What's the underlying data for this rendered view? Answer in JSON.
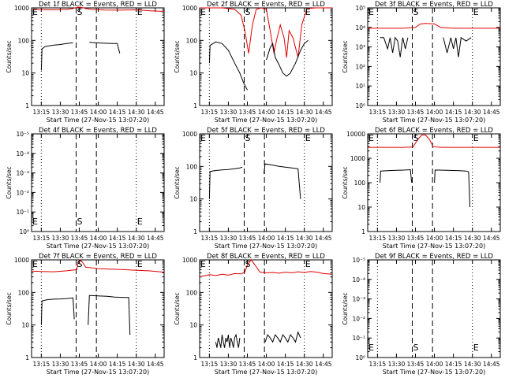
{
  "figure": {
    "xlabel": "Start Time (27-Nov-15 13:07:20)",
    "ylabel": "Counts/sec",
    "x_ticks": [
      "13:15",
      "13:30",
      "13:45",
      "14:00",
      "14:15",
      "14:30",
      "14:45"
    ],
    "x_tick_minutes": [
      0,
      15,
      30,
      45,
      60,
      75,
      90
    ],
    "xlim_minutes": [
      -7.7,
      97
    ],
    "colors": {
      "events": "#000000",
      "lld": "#e00000",
      "axes": "#000000",
      "background": "#ffffff"
    }
  },
  "chart_data": [
    {
      "type": "line",
      "title": "Det 1f BLACK = Events, RED = LLD",
      "ylim": [
        1,
        1000
      ],
      "y_ticks": [
        "1",
        "10",
        "100",
        "1000"
      ],
      "markers": {
        "E_left": "E",
        "S": "S",
        "E_right": "E"
      },
      "markers_at": "top",
      "series": [
        {
          "name": "LLD",
          "color": "#e00000",
          "x": [
            -7.7,
            0,
            10,
            20,
            25,
            26.5,
            30,
            33.5,
            35,
            40,
            50,
            60,
            75,
            85,
            97
          ],
          "y": [
            900,
            880,
            870,
            900,
            950,
            1000,
            1050,
            1000,
            950,
            900,
            860,
            850,
            870,
            820,
            780
          ]
        },
        {
          "name": "Events",
          "color": "#000000",
          "segments": [
            {
              "x": [
                0,
                0.5,
                3,
                6,
                10,
                14,
                18,
                22,
                25
              ],
              "y": [
                12,
                55,
                65,
                68,
                72,
                74,
                78,
                82,
                85
              ]
            },
            {
              "x": [
                38,
                40,
                45,
                50,
                55,
                60,
                62
              ],
              "y": [
                88,
                86,
                84,
                82,
                80,
                80,
                40
              ]
            }
          ]
        }
      ]
    },
    {
      "type": "line",
      "title": "Det 2f BLACK = Events, RED = LLD",
      "ylim": [
        1,
        1000
      ],
      "y_ticks": [
        "1",
        "10",
        "100",
        "1000"
      ],
      "markers": {
        "E_left": "E",
        "S": "S",
        "E_right": "E"
      },
      "markers_at": "top",
      "series": [
        {
          "name": "LLD",
          "color": "#e00000",
          "x": [
            -7.7,
            0,
            10,
            20,
            25,
            28,
            31,
            34,
            37,
            41,
            45,
            48,
            51,
            53,
            56,
            59,
            61,
            63,
            66,
            70,
            73,
            77,
            84,
            90,
            97
          ],
          "y": [
            1000,
            1000,
            1000,
            900,
            600,
            200,
            40,
            300,
            900,
            1000,
            900,
            200,
            40,
            100,
            300,
            120,
            30,
            200,
            120,
            30,
            300,
            950,
            1000,
            1000,
            1000
          ]
        },
        {
          "name": "Events",
          "color": "#000000",
          "segments": [
            {
              "x": [
                0,
                0.5,
                5,
                10,
                15,
                20,
                24,
                27,
                30
              ],
              "y": [
                20,
                70,
                90,
                80,
                50,
                20,
                10,
                5,
                3
              ]
            },
            {
              "x": [
                45,
                48,
                50,
                52,
                55,
                58,
                61,
                64,
                68,
                72,
                75,
                78
              ],
              "y": [
                25,
                60,
                80,
                30,
                18,
                10,
                8,
                10,
                20,
                50,
                80,
                100
              ]
            }
          ]
        }
      ]
    },
    {
      "type": "line",
      "title": "Det 3f BLACK = Events, RED = LLD",
      "ylim": [
        1,
        100000
      ],
      "y_ticks": [
        "10⁰",
        "10¹",
        "10²",
        "10³",
        "10⁴",
        "10⁵"
      ],
      "markers": {
        "E_left": "E",
        "S": "S",
        "E_right": "E"
      },
      "markers_at": "top",
      "series": [
        {
          "name": "LLD",
          "color": "#e00000",
          "x": [
            -7.7,
            0,
            20,
            30,
            34,
            38,
            45,
            50,
            60,
            80,
            97
          ],
          "y": [
            9000,
            9000,
            9000,
            10000,
            15000,
            16000,
            15000,
            10000,
            9000,
            9000,
            9000
          ]
        },
        {
          "name": "Events",
          "color": "#000000",
          "segments": [
            {
              "x": [
                2,
                5,
                8,
                10,
                12,
                14,
                16,
                18,
                20,
                22,
                24
              ],
              "y": [
                3000,
                3000,
                800,
                3000,
                500,
                3000,
                2000,
                300,
                3000,
                800,
                3000
              ]
            },
            {
              "x": [
                52,
                55,
                58,
                60,
                62,
                64,
                66,
                70,
                74
              ],
              "y": [
                3000,
                500,
                3000,
                800,
                3000,
                300,
                3000,
                2000,
                3000
              ]
            }
          ]
        }
      ]
    },
    {
      "type": "line",
      "title": "Det 4f BLACK = Events, RED = LLD",
      "ylim": [
        1,
        10000
      ],
      "y_ticks": [
        "10⁰",
        "10⁻¹",
        "10⁻²",
        "10⁻³",
        "10⁻⁴",
        "10⁻⁵"
      ],
      "y_tick_note": "degenerate axis labels as shown (no data)",
      "markers": {
        "E_left": "E",
        "S": "S",
        "E_right": "E"
      },
      "markers_at": "bottom",
      "series": []
    },
    {
      "type": "line",
      "title": "Det 5f BLACK = Events, RED = LLD",
      "ylim": [
        1,
        1000
      ],
      "y_ticks": [
        "1",
        "10",
        "100",
        "1000"
      ],
      "markers": {
        "E_left": "E",
        "S": "S",
        "E_right": "E"
      },
      "markers_at": "top",
      "series": [
        {
          "name": "Events",
          "color": "#000000",
          "segments": [
            {
              "x": [
                0,
                0.5,
                5,
                10,
                15,
                20,
                24,
                26
              ],
              "y": [
                10,
                70,
                75,
                78,
                80,
                85,
                90,
                95
              ]
            },
            {
              "x": [
                43,
                44,
                50,
                55,
                60,
                65,
                70,
                72
              ],
              "y": [
                60,
                120,
                110,
                100,
                95,
                90,
                85,
                10
              ]
            }
          ]
        }
      ]
    },
    {
      "type": "line",
      "title": "Det 6f BLACK = Events, RED = LLD",
      "ylim": [
        1,
        10000
      ],
      "y_ticks": [
        "1",
        "10",
        "100",
        "1000",
        "10000"
      ],
      "markers": {
        "E_left": "E",
        "S": "S",
        "E_right": "E"
      },
      "markers_at": "top",
      "series": [
        {
          "name": "LLD",
          "color": "#e00000",
          "x": [
            -7.7,
            0,
            20,
            28,
            32,
            35,
            38,
            41,
            44,
            50,
            70,
            97
          ],
          "y": [
            2800,
            2800,
            2800,
            2900,
            6000,
            9000,
            9000,
            6000,
            3000,
            2800,
            2800,
            2800
          ]
        },
        {
          "name": "Events",
          "color": "#000000",
          "segments": [
            {
              "x": [
                2,
                2.5,
                8,
                15,
                22,
                26,
                27
              ],
              "y": [
                100,
                300,
                310,
                320,
                330,
                340,
                100
              ]
            },
            {
              "x": [
                45,
                45.5,
                55,
                65,
                70,
                72,
                73
              ],
              "y": [
                100,
                330,
                320,
                310,
                300,
                280,
                10
              ]
            }
          ]
        }
      ]
    },
    {
      "type": "line",
      "title": "Det 7f BLACK = Events, RED = LLD",
      "ylim": [
        1,
        1000
      ],
      "y_ticks": [
        "1",
        "10",
        "100",
        "1000"
      ],
      "markers": {
        "E_left": "E",
        "S": "S",
        "E_right": "E"
      },
      "markers_at": "top",
      "series": [
        {
          "name": "LLD",
          "color": "#e00000",
          "x": [
            -7.7,
            0,
            10,
            20,
            28,
            29,
            31,
            33,
            35,
            45,
            55,
            65,
            75,
            85,
            97
          ],
          "y": [
            450,
            440,
            430,
            460,
            500,
            800,
            1000,
            800,
            600,
            540,
            520,
            500,
            480,
            460,
            420
          ]
        },
        {
          "name": "Events",
          "color": "#000000",
          "segments": [
            {
              "x": [
                0,
                0.5,
                5,
                10,
                15,
                20,
                25,
                26
              ],
              "y": [
                10,
                55,
                60,
                62,
                63,
                65,
                68,
                15
              ]
            },
            {
              "x": [
                37,
                38,
                45,
                52,
                58,
                65,
                69,
                70
              ],
              "y": [
                10,
                80,
                78,
                76,
                72,
                70,
                70,
                5
              ]
            }
          ]
        }
      ]
    },
    {
      "type": "line",
      "title": "Det 8f BLACK = Events, RED = LLD",
      "ylim": [
        1,
        1000
      ],
      "y_ticks": [
        "1",
        "10",
        "100",
        "1000"
      ],
      "markers": {
        "E_left": "E",
        "S": "S",
        "E_right": "E"
      },
      "markers_at": "top",
      "series": [
        {
          "name": "LLD",
          "color": "#e00000",
          "x": [
            -7.7,
            -5,
            0,
            5,
            10,
            15,
            20,
            25,
            28,
            30,
            33,
            36,
            40,
            45,
            50,
            55,
            60,
            65,
            70,
            75,
            80,
            85,
            90,
            97
          ],
          "y": [
            300,
            320,
            350,
            330,
            360,
            340,
            380,
            370,
            420,
            700,
            1000,
            700,
            420,
            400,
            410,
            390,
            420,
            400,
            430,
            410,
            440,
            420,
            380,
            360
          ]
        },
        {
          "name": "Events",
          "color": "#000000",
          "segments": [
            {
              "x": [
                5,
                6,
                7,
                8,
                9,
                10,
                11,
                12,
                13,
                14,
                15,
                16,
                17,
                18,
                19,
                20,
                21,
                22,
                23,
                24
              ],
              "y": [
                3,
                2,
                4,
                3,
                2,
                5,
                3,
                2,
                4,
                3,
                5,
                2,
                4,
                3,
                2,
                4,
                5,
                3,
                2,
                4
              ]
            },
            {
              "x": [
                44,
                46,
                48,
                50,
                52,
                54,
                56,
                58,
                60,
                62,
                64,
                66,
                68,
                70,
                72
              ],
              "y": [
                3,
                5,
                4,
                3,
                5,
                4,
                3,
                5,
                4,
                3,
                5,
                4,
                3,
                6,
                4
              ]
            }
          ]
        }
      ]
    },
    {
      "type": "line",
      "title": "Det 9f BLACK = Events, RED = LLD",
      "ylim": [
        1,
        10000
      ],
      "y_ticks": [
        "10⁰",
        "10⁻¹",
        "10⁻²",
        "10⁻³",
        "10⁻⁴",
        "10⁻⁵"
      ],
      "y_tick_note": "degenerate axis labels as shown (no data)",
      "markers": {
        "E_left": "E",
        "S": "S",
        "E_right": "E"
      },
      "markers_at": "bottom",
      "series": []
    }
  ]
}
